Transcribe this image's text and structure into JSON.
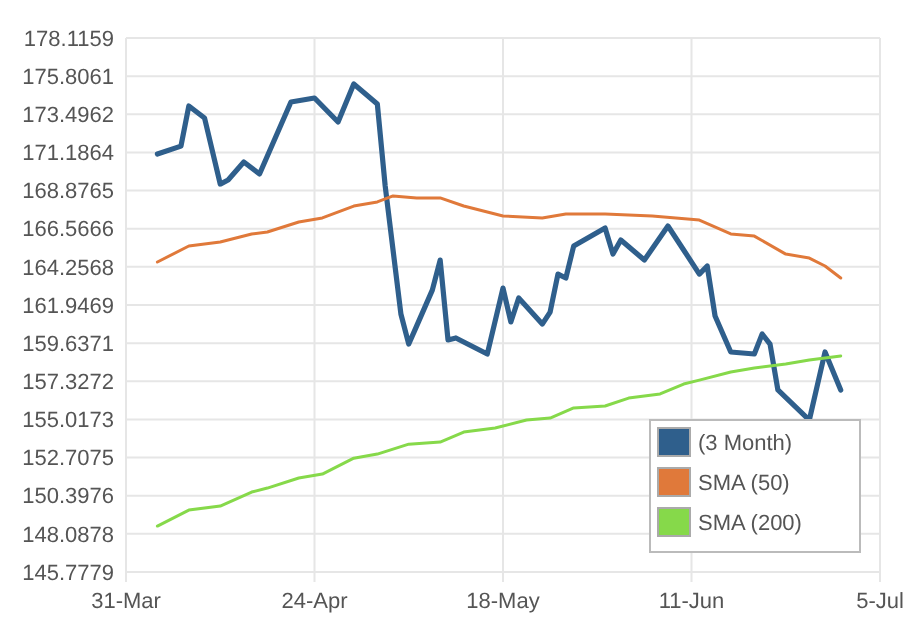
{
  "chart_data": {
    "type": "line",
    "xlim": [
      "--03-31",
      "--07-05"
    ],
    "xticks": [
      {
        "value": "--03-31",
        "label": "31-Mar"
      },
      {
        "value": "--04-24",
        "label": "24-Apr"
      },
      {
        "value": "--05-18",
        "label": "18-May"
      },
      {
        "value": "--06-11",
        "label": "11-Jun"
      },
      {
        "value": "--07-05",
        "label": "5-Jul"
      }
    ],
    "ylim": [
      145.7779,
      178.1159
    ],
    "yticks": [
      145.7779,
      148.0878,
      150.3976,
      152.7075,
      155.0173,
      157.3272,
      159.6371,
      161.9469,
      164.2568,
      166.5666,
      168.8765,
      171.1864,
      173.4962,
      175.8061,
      178.1159
    ],
    "grid": true,
    "legend": "bottom right",
    "marker": "none",
    "series": [
      {
        "name": "(3 Month)",
        "color": "#2f5f8c",
        "x": [
          "--04-04",
          "--04-07",
          "--04-08",
          "--04-10",
          "--04-12",
          "--04-13",
          "--04-15",
          "--04-17",
          "--04-21",
          "--04-24",
          "--04-27",
          "--04-29",
          "--05-02",
          "--05-03",
          "--05-05",
          "--05-06",
          "--05-07",
          "--05-09",
          "--05-10",
          "--05-11",
          "--05-12",
          "--05-16",
          "--05-18",
          "--05-19",
          "--05-20",
          "--05-23",
          "--05-24",
          "--05-25",
          "--05-26",
          "--05-27",
          "--05-31",
          "--06-01",
          "--06-02",
          "--06-05",
          "--06-08",
          "--06-10",
          "--06-12",
          "--06-13",
          "--06-14",
          "--06-16",
          "--06-19",
          "--06-20",
          "--06-21",
          "--06-22",
          "--06-26",
          "--06-28",
          "--06-30"
        ],
        "values": [
          171.09,
          171.57,
          174.0,
          173.27,
          169.27,
          169.52,
          170.61,
          169.88,
          174.24,
          174.48,
          173.03,
          175.33,
          174.12,
          169.15,
          161.4,
          159.58,
          160.67,
          162.85,
          164.67,
          159.83,
          159.95,
          158.98,
          162.97,
          160.92,
          162.37,
          160.79,
          161.52,
          163.82,
          163.58,
          165.52,
          166.61,
          165.03,
          165.88,
          164.67,
          166.73,
          165.28,
          163.82,
          164.31,
          161.28,
          159.1,
          158.98,
          160.19,
          159.58,
          156.8,
          154.98,
          159.1,
          156.8
        ]
      },
      {
        "name": "SMA (50)",
        "color": "#e0793a",
        "x": [
          "--04-04",
          "--04-08",
          "--04-12",
          "--04-16",
          "--04-18",
          "--04-22",
          "--04-25",
          "--04-29",
          "--05-02",
          "--05-04",
          "--05-07",
          "--05-10",
          "--05-13",
          "--05-18",
          "--05-23",
          "--05-26",
          "--05-31",
          "--06-06",
          "--06-12",
          "--06-16",
          "--06-19",
          "--06-23",
          "--06-26",
          "--06-28",
          "--06-30"
        ],
        "values": [
          164.55,
          165.52,
          165.76,
          166.25,
          166.37,
          166.97,
          167.22,
          167.94,
          168.19,
          168.55,
          168.43,
          168.43,
          167.94,
          167.34,
          167.22,
          167.46,
          167.46,
          167.34,
          167.09,
          166.25,
          166.12,
          165.03,
          164.79,
          164.31,
          163.58
        ]
      },
      {
        "name": "SMA (200)",
        "color": "#86d94a",
        "x": [
          "--04-04",
          "--04-08",
          "--04-12",
          "--04-16",
          "--04-18",
          "--04-22",
          "--04-25",
          "--04-29",
          "--05-02",
          "--05-06",
          "--05-10",
          "--05-13",
          "--05-17",
          "--05-21",
          "--05-24",
          "--05-27",
          "--05-31",
          "--06-03",
          "--06-07",
          "--06-10",
          "--06-12",
          "--06-16",
          "--06-19",
          "--06-23",
          "--06-26",
          "--06-30"
        ],
        "values": [
          148.56,
          149.53,
          149.77,
          150.62,
          150.86,
          151.47,
          151.71,
          152.67,
          152.92,
          153.52,
          153.65,
          154.25,
          154.5,
          154.98,
          155.1,
          155.71,
          155.83,
          156.31,
          156.56,
          157.16,
          157.4,
          157.89,
          158.13,
          158.37,
          158.62,
          158.86
        ]
      }
    ]
  }
}
